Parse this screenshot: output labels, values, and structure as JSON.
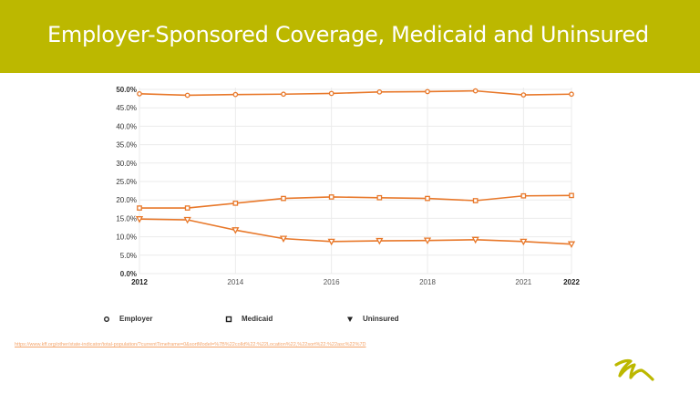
{
  "slide": {
    "title": "Employer-Sponsored Coverage, Medicaid and Uninsured",
    "source_url": "https://www.kff.org/other/state-indicator/total-population/?currentTimeframe=0&sortModel=%7B%22colId%22:%22Location%22,%22sort%22:%22asc%22%7D",
    "header_color": "#bcb800",
    "logo": "stylized-m-logo"
  },
  "chart_data": {
    "type": "line",
    "x": [
      "2012",
      "2013",
      "2014",
      "2015",
      "2016",
      "2017",
      "2018",
      "2019",
      "2021",
      "2022"
    ],
    "x_tick_labels": [
      "2012",
      "2014",
      "2016",
      "2018",
      "2021",
      "2022"
    ],
    "y_tick_labels": [
      "0.0%",
      "5.0%",
      "10.0%",
      "15.0%",
      "20.0%",
      "25.0%",
      "30.0%",
      "35.0%",
      "40.0%",
      "45.0%",
      "50.0%"
    ],
    "ylim": [
      0,
      50
    ],
    "grid": true,
    "legend_position": "bottom",
    "line_color": "#e8782a",
    "series": [
      {
        "name": "Employer",
        "marker": "circle",
        "values": [
          48.8,
          48.4,
          48.6,
          48.7,
          48.9,
          49.3,
          49.4,
          49.6,
          48.5,
          48.7
        ]
      },
      {
        "name": "Medicaid",
        "marker": "square",
        "values": [
          17.8,
          17.8,
          19.1,
          20.4,
          20.8,
          20.6,
          20.4,
          19.8,
          21.1,
          21.2
        ]
      },
      {
        "name": "Uninsured",
        "marker": "triangle-down",
        "values": [
          14.8,
          14.6,
          11.8,
          9.5,
          8.7,
          8.9,
          9.0,
          9.2,
          8.7,
          8.0
        ]
      }
    ]
  }
}
